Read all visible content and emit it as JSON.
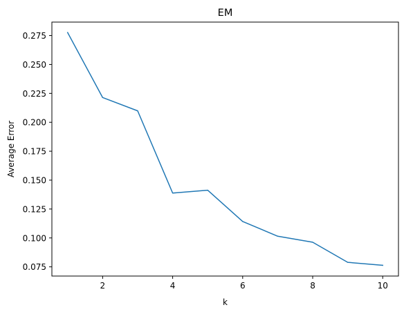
{
  "chart_data": {
    "type": "line",
    "title": "EM",
    "xlabel": "k",
    "ylabel": "Average Error",
    "x": [
      1,
      2,
      3,
      4,
      5,
      6,
      7,
      8,
      9,
      10
    ],
    "series": [
      {
        "values": [
          0.2776,
          0.2214,
          0.2099,
          0.1388,
          0.1413,
          0.1142,
          0.1015,
          0.0963,
          0.0789,
          0.0763
        ],
        "color": "#1f77b4"
      }
    ],
    "xlim": [
      0.55,
      10.45
    ],
    "ylim": [
      0.06704,
      0.28666
    ],
    "xticks": [
      2,
      4,
      6,
      8,
      10
    ],
    "xtick_labels": [
      "2",
      "4",
      "6",
      "8",
      "10"
    ],
    "yticks": [
      0.075,
      0.1,
      0.125,
      0.15,
      0.175,
      0.2,
      0.225,
      0.25,
      0.275
    ],
    "ytick_labels": [
      "0.075",
      "0.100",
      "0.125",
      "0.150",
      "0.175",
      "0.200",
      "0.225",
      "0.250",
      "0.275"
    ],
    "grid": false,
    "legend": false
  }
}
